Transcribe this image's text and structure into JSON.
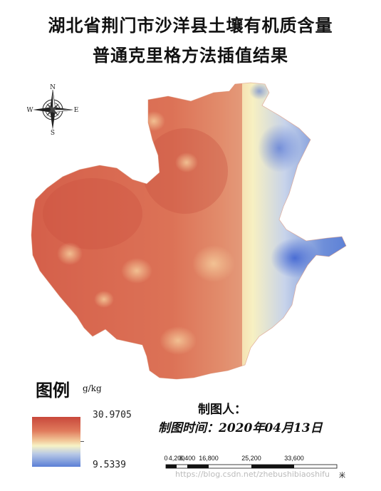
{
  "title": {
    "line1": "湖北省荆门市沙洋县土壤有机质含量",
    "line2": "普通克里格方法插值结果"
  },
  "compass": {
    "north": "N",
    "south": "S",
    "east": "E",
    "west": "W"
  },
  "legend": {
    "title": "图例",
    "unit": "g/kg",
    "max_label": "30.9705",
    "min_label": "9.5339",
    "max_value": 30.9705,
    "min_value": 9.5339,
    "color_high": "#c8483b",
    "color_mid": "#f7f3c6",
    "color_low": "#5b7fd6"
  },
  "credits": {
    "maker_label": "制图人：",
    "date_label": "制图时间：2020年04月13日"
  },
  "scale_bar": {
    "ticks": [
      "0",
      "4,200",
      "8,400",
      "16,800",
      "25,200",
      "33,600"
    ],
    "unit": "米"
  },
  "watermark": "https://blog.csdn.net/zhebushibiaoshifu"
}
